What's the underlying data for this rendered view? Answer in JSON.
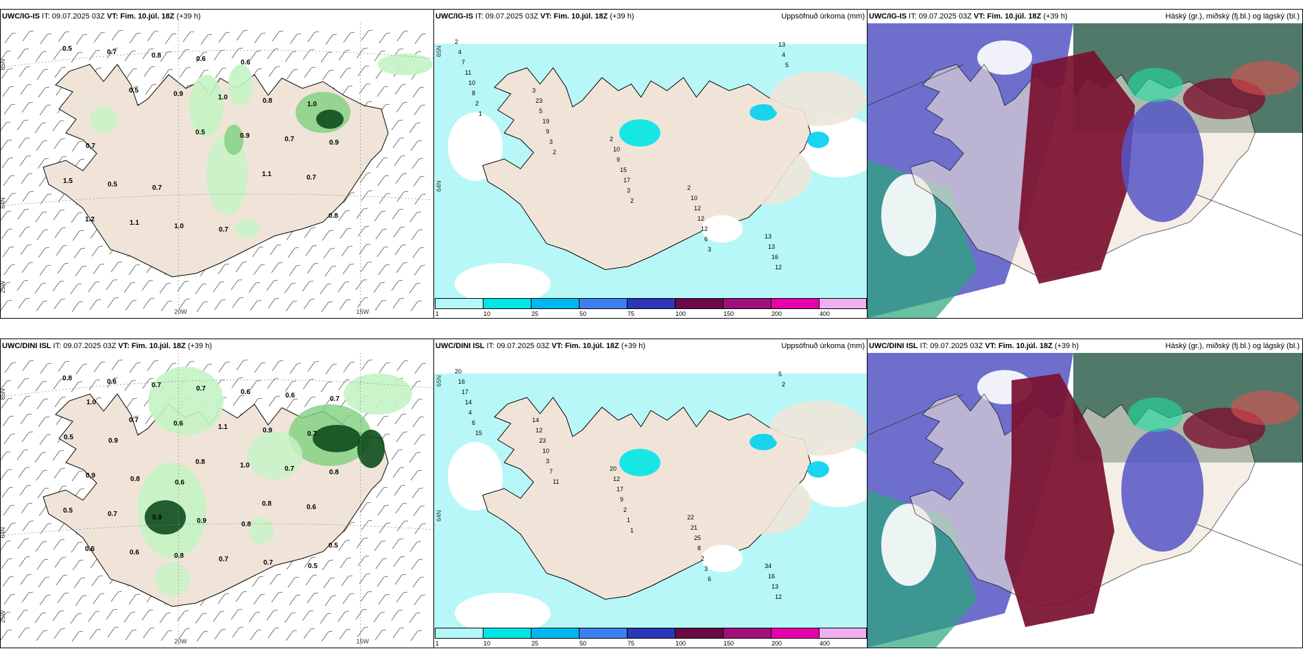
{
  "panels": [
    {
      "id": "p1",
      "title_model": "UWC/IG-IS",
      "title_it": " IT: 09.07.2025 03Z ",
      "title_vt": "VT: Fim. 10.júl. 18Z",
      "title_lead": " (+39 h)",
      "right_title": "",
      "axis": {
        "lon_a": "20W",
        "lon_b": "15W",
        "lat_a": "65N",
        "lat_b": "64N",
        "lon_c": "25W"
      },
      "values": [
        "0.5",
        "0.5",
        "0.5",
        "1.1",
        "0.8",
        "0.7",
        "0.9",
        "0.9",
        "0.7",
        "1.2",
        "0.8",
        "1.0",
        "0.7",
        "1.5",
        "1.1",
        "0.6",
        "0.8",
        "0.9",
        "0.5",
        "1.0",
        "0.6",
        "1.0",
        "0.7",
        "0.7",
        "0.7"
      ]
    },
    {
      "id": "p2",
      "title_model": "UWC/IG-IS",
      "title_it": " IT: 09.07.2025 03Z ",
      "title_vt": "VT: Fim. 10.júl. 18Z",
      "title_lead": " (+39 h)",
      "right_title": "Uppsöfnuð úrkoma (mm)",
      "axis": {
        "lat_a": "65N",
        "lat_b": "64N"
      },
      "values": [
        "2",
        "3",
        "2",
        "2",
        "13",
        "4",
        "23",
        "10",
        "10",
        "13",
        "7",
        "5",
        "9",
        "12",
        "16",
        "11",
        "19",
        "15",
        "12",
        "12",
        "10",
        "9",
        "17",
        "12",
        "13",
        "8",
        "3",
        "3",
        "6",
        "4",
        "2",
        "2",
        "2",
        "3",
        "5",
        "1"
      ]
    },
    {
      "id": "p3",
      "title_model": "UWC/IG-IS",
      "title_it": " IT: 09.07.2025 03Z ",
      "title_vt": "VT: Fim. 10.júl. 18Z",
      "title_lead": " (+39 h)",
      "right_title": "Háský (gr.), miðský (fj.bl.) og lágský (bl.)"
    },
    {
      "id": "p4",
      "title_model": "UWC/DINI ISL",
      "title_it": " IT: 09.07.2025 03Z ",
      "title_vt": "VT: Fim. 10.júl. 18Z",
      "title_lead": " (+39 h)",
      "right_title": "",
      "axis": {
        "lon_a": "20W",
        "lon_b": "15W",
        "lat_a": "65N",
        "lat_b": "64N",
        "lon_c": "25W"
      },
      "values": [
        "0.8",
        "0.7",
        "0.8",
        "0.8",
        "0.5",
        "0.6",
        "0.6",
        "1.0",
        "0.6",
        "0.6",
        "0.7",
        "1.1",
        "0.7",
        "0.5",
        "0.6",
        "0.7",
        "0.9",
        "0.8",
        "0.7",
        "0.8",
        "0.6",
        "0.7",
        "0.9",
        "0.9",
        "0.7",
        "0.6",
        "0.5",
        "0.8",
        "0.9",
        "0.7",
        "0.7",
        "0.9",
        "0.6",
        "0.8",
        "0.5",
        "1.0"
      ]
    },
    {
      "id": "p5",
      "title_model": "UWC/DINI ISL",
      "title_it": " IT: 09.07.2025 03Z ",
      "title_vt": "VT: Fim. 10.júl. 18Z",
      "title_lead": " (+39 h)",
      "right_title": "Uppsöfnuð úrkoma (mm)",
      "axis": {
        "lat_a": "65N",
        "lat_b": "64N"
      },
      "values": [
        "20",
        "14",
        "20",
        "22",
        "34",
        "16",
        "12",
        "12",
        "21",
        "16",
        "17",
        "23",
        "17",
        "25",
        "13",
        "14",
        "10",
        "9",
        "8",
        "12",
        "4",
        "3",
        "2",
        "2",
        "5",
        "6",
        "7",
        "1",
        "3",
        "2",
        "15",
        "11",
        "1",
        "6"
      ]
    },
    {
      "id": "p6",
      "title_model": "UWC/DINI ISL",
      "title_it": " IT: 09.07.2025 03Z ",
      "title_vt": "VT: Fim. 10.júl. 18Z",
      "title_lead": " (+39 h)",
      "right_title": "Háský (gr.), miðský (fj.bl.) og lágský (bl.)"
    }
  ],
  "colorbar": {
    "ticks": [
      "1",
      "10",
      "25",
      "50",
      "75",
      "100",
      "150",
      "200",
      "400"
    ],
    "colors": [
      "#b4f7f7",
      "#00e5e5",
      "#00b8f0",
      "#3d7ff0",
      "#2b36b8",
      "#6a0a47",
      "#a0107a",
      "#e800a8",
      "#f0b0f0"
    ]
  },
  "colors": {
    "land": "#f0e4d8",
    "precip_light": "#c4f4c4",
    "precip_mid": "#7fd07f",
    "precip_dark": "#0e4d1e",
    "precip_map": "#b4f7f7",
    "cloud_high": "#117a4d",
    "cloud_mid": "#5555c4",
    "cloud_low": "#7a1030"
  }
}
